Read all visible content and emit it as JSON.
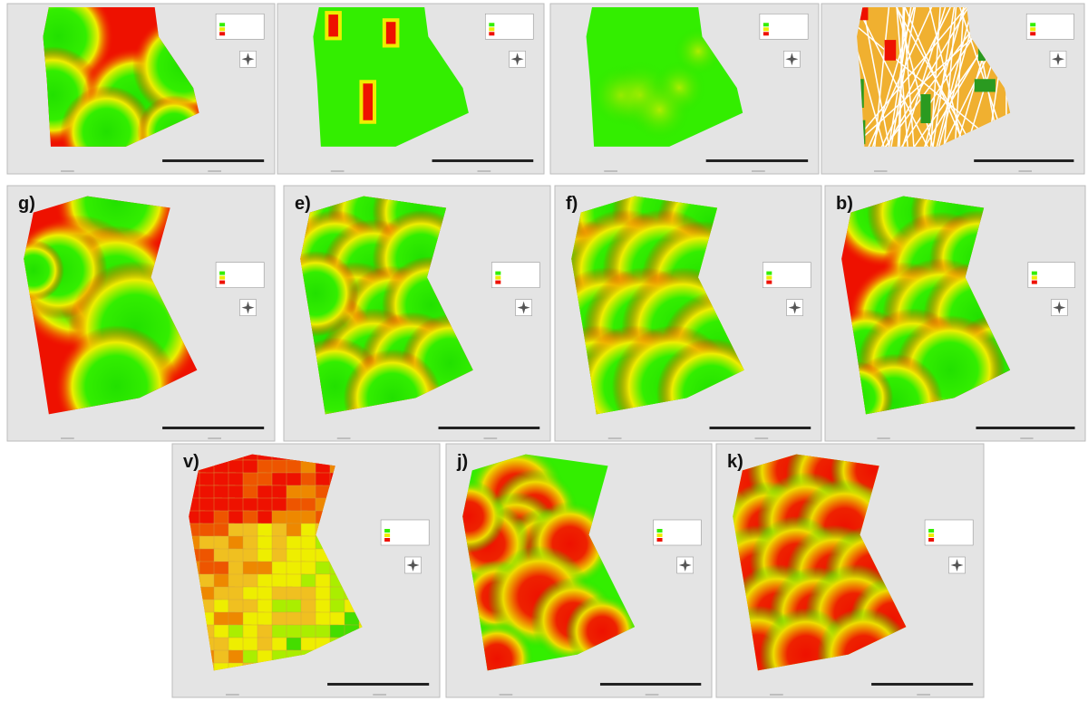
{
  "panels": [
    {
      "label": "g)"
    },
    {
      "label": "e)"
    },
    {
      "label": "f)"
    },
    {
      "label": "b)"
    },
    {
      "label": "v)"
    },
    {
      "label": "j)"
    },
    {
      "label": "k)"
    }
  ]
}
